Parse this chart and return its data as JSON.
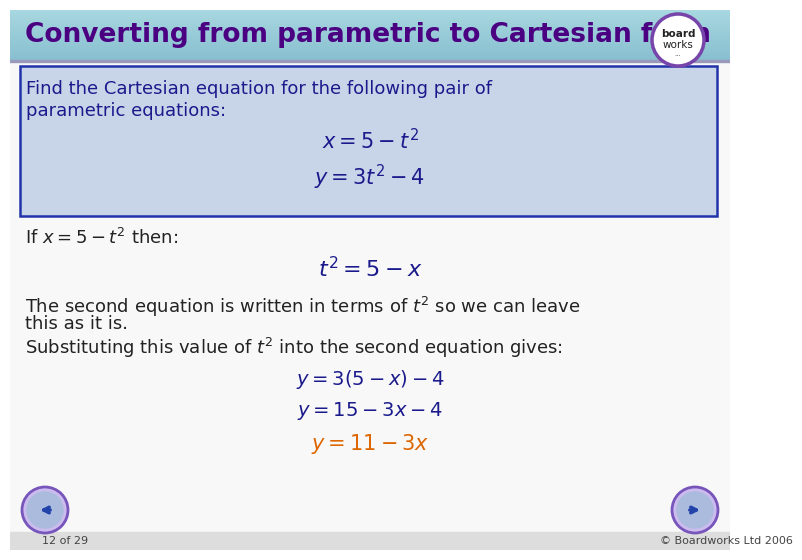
{
  "title": "Converting from parametric to Cartesian form",
  "title_color": "#4B0082",
  "main_bg": "#f0f0f0",
  "box_bg": "#c8d4e8",
  "box_border": "#2233aa",
  "text_dark": "#1a1a8c",
  "text_black": "#222222",
  "text_orange": "#dd6600",
  "footer_text": "12 of 29",
  "copyright_text": "© Boardworks Ltd 2006",
  "title_bar_color_top": "#a8d8e0",
  "title_bar_color_bot": "#88bfd0"
}
